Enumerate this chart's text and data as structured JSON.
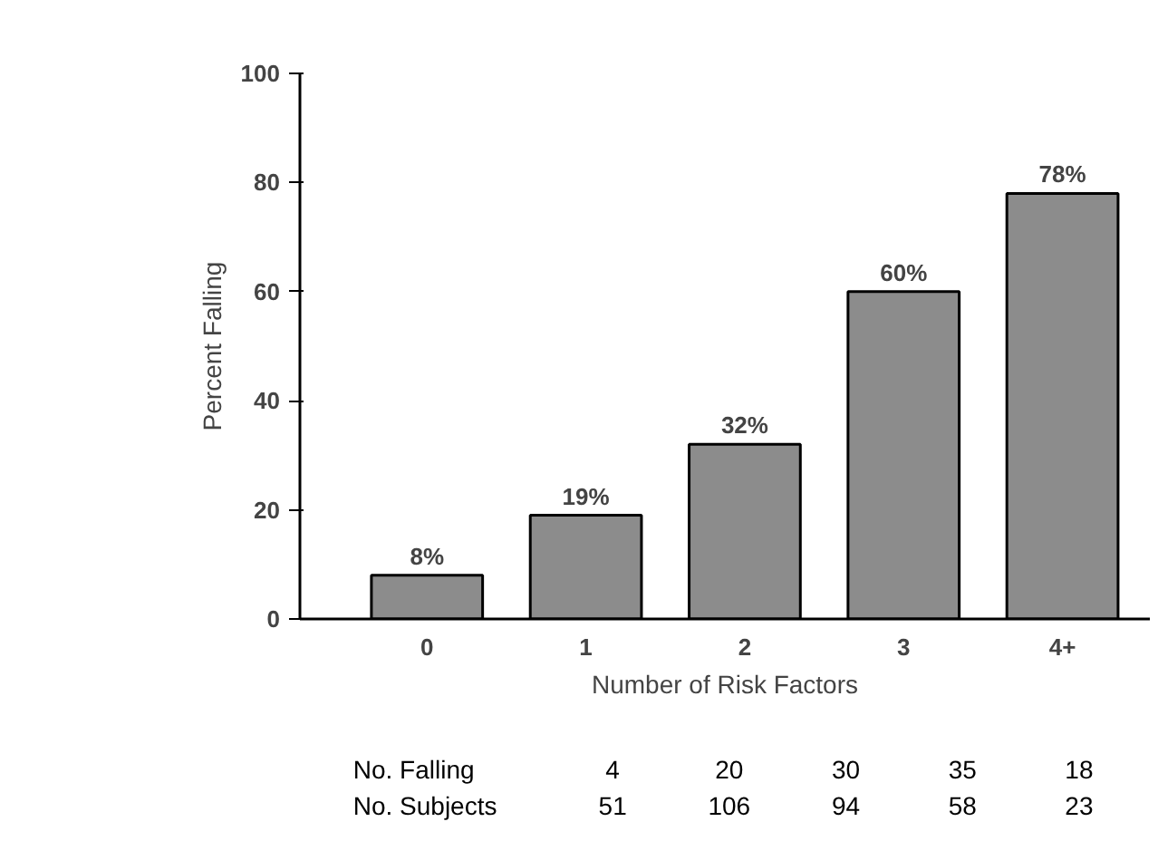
{
  "chart_data": {
    "type": "bar",
    "xlabel": "Number of Risk Factors",
    "ylabel": "Percent Falling",
    "categories": [
      "0",
      "1",
      "2",
      "3",
      "4+"
    ],
    "values": [
      8,
      19,
      32,
      60,
      78
    ],
    "value_labels": [
      "8%",
      "19%",
      "32%",
      "60%",
      "78%"
    ],
    "color": "#8c8c8c",
    "ylim": [
      0,
      100
    ],
    "yticks": [
      0,
      20,
      40,
      60,
      80,
      100
    ],
    "grid": false,
    "annotations": [
      "No. Falling",
      "No. Subjects",
      "4",
      "51",
      "20",
      "106",
      "30",
      "94",
      "35",
      "58",
      "18",
      "23"
    ]
  }
}
